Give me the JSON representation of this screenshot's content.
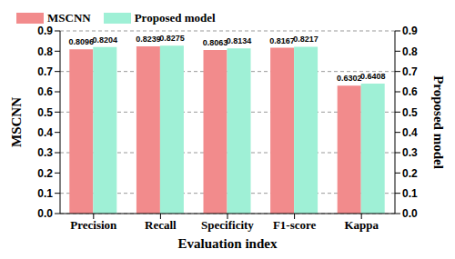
{
  "chart_data": {
    "type": "bar",
    "x_label": "Evaluation index",
    "y_label": "MSCNN",
    "y2_label": "Proposed model",
    "categories": [
      "Precision",
      "Recall",
      "Specificity",
      "F1-score",
      "Kappa"
    ],
    "series": [
      {
        "name": "MSCNN",
        "color": "#f28b8c",
        "values": [
          0.8096,
          0.8239,
          0.8063,
          0.8167,
          0.6302
        ]
      },
      {
        "name": "Proposed model",
        "color": "#9ff0d6",
        "axis": "y2",
        "values": [
          0.8204,
          0.8275,
          0.8134,
          0.8217,
          0.6408
        ]
      }
    ],
    "ylim": [
      0,
      0.9
    ],
    "yticks": [
      {
        "value": 0,
        "label": "0.0"
      },
      0.1,
      0.2,
      0.3,
      0.4,
      0.5,
      0.6,
      0.7,
      0.8,
      0.9
    ],
    "y2lim": [
      0,
      0.9
    ],
    "y2ticks": [
      {
        "value": 0,
        "label": "0.0"
      },
      0.1,
      0.2,
      0.3,
      0.4,
      0.5,
      0.6,
      0.7,
      0.8,
      0.9
    ],
    "grid": true,
    "legend": "upper left",
    "data_labels": true
  }
}
